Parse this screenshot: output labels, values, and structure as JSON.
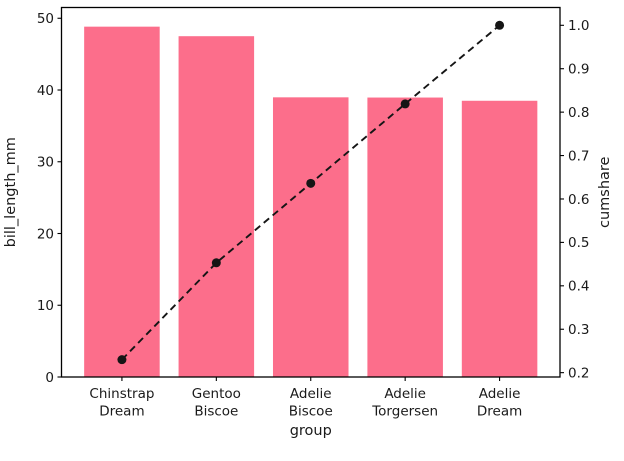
{
  "chart_data": {
    "type": "bar",
    "overlay_type": "line",
    "title": "",
    "xlabel": "group",
    "ylabel_left": "bill_length_mm",
    "ylabel_right": "cumshare",
    "categories": [
      "Chinstrap\nDream",
      "Gentoo\nBiscoe",
      "Adelie\nBiscoe",
      "Adelie\nTorgersen",
      "Adelie\nDream"
    ],
    "series": [
      {
        "name": "bill_length_mm",
        "type": "bar",
        "axis": "left",
        "values": [
          48.83,
          47.5,
          38.98,
          38.95,
          38.5
        ],
        "color": "#fc6e8b"
      },
      {
        "name": "cumshare",
        "type": "line",
        "axis": "right",
        "linestyle": "dashed",
        "marker": "circle",
        "values": [
          0.23,
          0.453,
          0.636,
          0.819,
          1.0
        ],
        "color": "#151515"
      }
    ],
    "left_ticks": [
      0,
      10,
      20,
      30,
      40,
      50
    ],
    "right_ticks": [
      0.2,
      0.3,
      0.4,
      0.5,
      0.6,
      0.7,
      0.8,
      0.9,
      1.0
    ],
    "ylim_left": [
      0,
      51.5
    ],
    "ylim_right": [
      0.19,
      1.041
    ],
    "xlim": [
      -0.64,
      4.64
    ],
    "bar_width": 0.8,
    "grid": false,
    "legend": null,
    "background_color": "#ffffff",
    "text_color": "#1a1a1a",
    "spine_color": "#000000"
  }
}
